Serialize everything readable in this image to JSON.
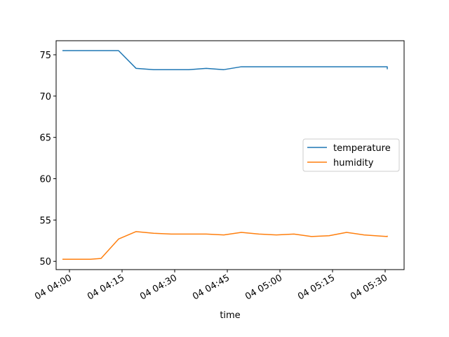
{
  "chart_data": {
    "type": "line",
    "title": "",
    "xlabel": "time",
    "ylabel": "",
    "x_ticks": [
      "04 04:00",
      "04 04:15",
      "04 04:30",
      "04 04:45",
      "04 05:00",
      "04 05:15",
      "04 05:30"
    ],
    "x_tick_minutes": [
      0,
      15,
      30,
      45,
      60,
      75,
      90
    ],
    "xlim_minutes": [
      -3.8,
      95.4
    ],
    "y_ticks": [
      50,
      55,
      60,
      65,
      70,
      75
    ],
    "ylim": [
      49.0,
      76.7
    ],
    "legend_position": "center-right",
    "grid": false,
    "series": [
      {
        "name": "temperature",
        "color": "#1f77b4",
        "points": [
          [
            -2,
            75.5
          ],
          [
            14,
            75.5
          ],
          [
            19,
            73.35
          ],
          [
            24,
            73.2
          ],
          [
            29,
            73.2
          ],
          [
            34,
            73.2
          ],
          [
            39,
            73.35
          ],
          [
            44,
            73.2
          ],
          [
            49,
            73.55
          ],
          [
            54,
            73.55
          ],
          [
            59,
            73.55
          ],
          [
            64,
            73.55
          ],
          [
            69,
            73.55
          ],
          [
            74,
            73.55
          ],
          [
            79,
            73.55
          ],
          [
            84,
            73.55
          ],
          [
            89,
            73.55
          ],
          [
            90.6,
            73.55
          ],
          [
            90.6,
            73.25
          ]
        ]
      },
      {
        "name": "humidity",
        "color": "#ff7f0e",
        "points": [
          [
            -2,
            50.25
          ],
          [
            3,
            50.25
          ],
          [
            6,
            50.25
          ],
          [
            9,
            50.35
          ],
          [
            14,
            52.7
          ],
          [
            19,
            53.6
          ],
          [
            24,
            53.4
          ],
          [
            29,
            53.3
          ],
          [
            34,
            53.3
          ],
          [
            39,
            53.3
          ],
          [
            44,
            53.2
          ],
          [
            49,
            53.5
          ],
          [
            54,
            53.3
          ],
          [
            59,
            53.2
          ],
          [
            64,
            53.3
          ],
          [
            69,
            53.0
          ],
          [
            74,
            53.1
          ],
          [
            79,
            53.5
          ],
          [
            84,
            53.2
          ],
          [
            89,
            53.05
          ],
          [
            90.6,
            53.0
          ],
          [
            90.6,
            53.1
          ]
        ]
      }
    ]
  }
}
